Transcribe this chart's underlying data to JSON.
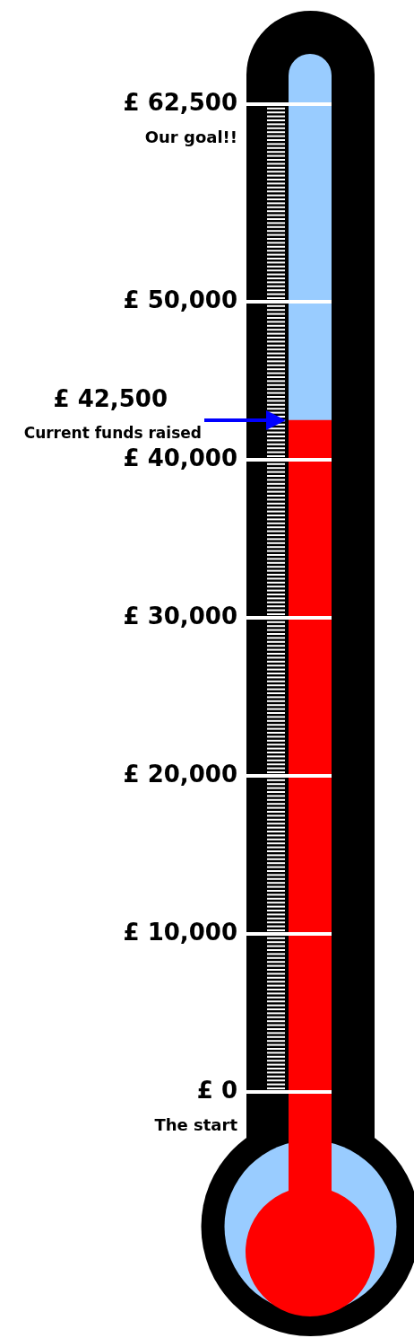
{
  "chart_data": {
    "type": "bar",
    "categories": [
      null
    ],
    "values": [
      42500
    ],
    "color": "#ff0000",
    "ylim": [
      0,
      65000
    ],
    "yticks": [
      {
        "value": 0,
        "label": "£ 0"
      },
      {
        "value": 10000,
        "label": "£ 10,000"
      },
      {
        "value": 20000,
        "label": "£ 20,000"
      },
      {
        "value": 30000,
        "label": "£ 30,000"
      },
      {
        "value": 40000,
        "label": "£ 40,000"
      },
      {
        "value": 50000,
        "label": "£ 50,000"
      },
      {
        "value": 62500,
        "label": "£ 62,500"
      }
    ],
    "grid": "y",
    "tick_labels": "y",
    "legend": false,
    "annotations": [
      "Our goal!!",
      "£ 42,500",
      "Current funds raised",
      "The start"
    ]
  }
}
